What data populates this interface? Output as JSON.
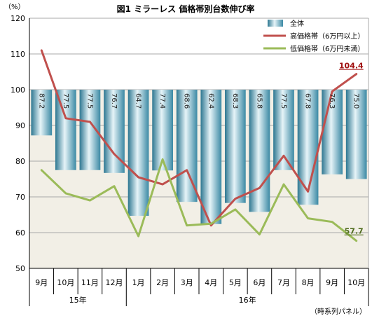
{
  "chart_data": {
    "type": "bar",
    "title": "図1 ミラーレス 価格帯別台数伸び率",
    "y_unit": "（%）",
    "ylim": [
      50,
      120
    ],
    "y_ticks": [
      50,
      60,
      70,
      80,
      90,
      100,
      110,
      120
    ],
    "baseline": 100,
    "categories": [
      "9月",
      "10月",
      "11月",
      "12月",
      "1月",
      "2月",
      "3月",
      "4月",
      "5月",
      "6月",
      "7月",
      "8月",
      "9月",
      "10月"
    ],
    "year_groups": [
      {
        "label": "15年",
        "span": 4
      },
      {
        "label": "16年",
        "span": 10
      }
    ],
    "series": [
      {
        "name": "全体",
        "kind": "bar",
        "color": "#5aa7c2",
        "values": [
          87.2,
          77.5,
          77.5,
          76.7,
          64.7,
          77.4,
          68.6,
          62.4,
          68.3,
          65.8,
          77.5,
          67.8,
          76.3,
          75.0
        ]
      },
      {
        "name": "高価格帯（6万円以上）",
        "kind": "line",
        "color": "#c0504d",
        "values": [
          111.0,
          92.0,
          91.0,
          82.0,
          75.5,
          73.5,
          77.5,
          62.0,
          69.5,
          72.5,
          81.5,
          71.5,
          99.5,
          104.4
        ]
      },
      {
        "name": "低価格帯（6万円未満）",
        "kind": "line",
        "color": "#9bbb59",
        "values": [
          77.5,
          71.0,
          69.0,
          73.0,
          59.0,
          80.5,
          62.0,
          62.5,
          66.5,
          59.5,
          73.5,
          64.0,
          63.0,
          57.7
        ]
      }
    ],
    "end_labels": {
      "high": "104.4",
      "low": "57.7"
    },
    "source_note": "（時系列パネル）",
    "legend_position": "top-right",
    "grid": true
  },
  "colors": {
    "high_label": "#a01010",
    "low_label": "#4e6b1c",
    "shade": "#f2efe6",
    "grid": "#a8a8a8",
    "axis": "#000000"
  }
}
